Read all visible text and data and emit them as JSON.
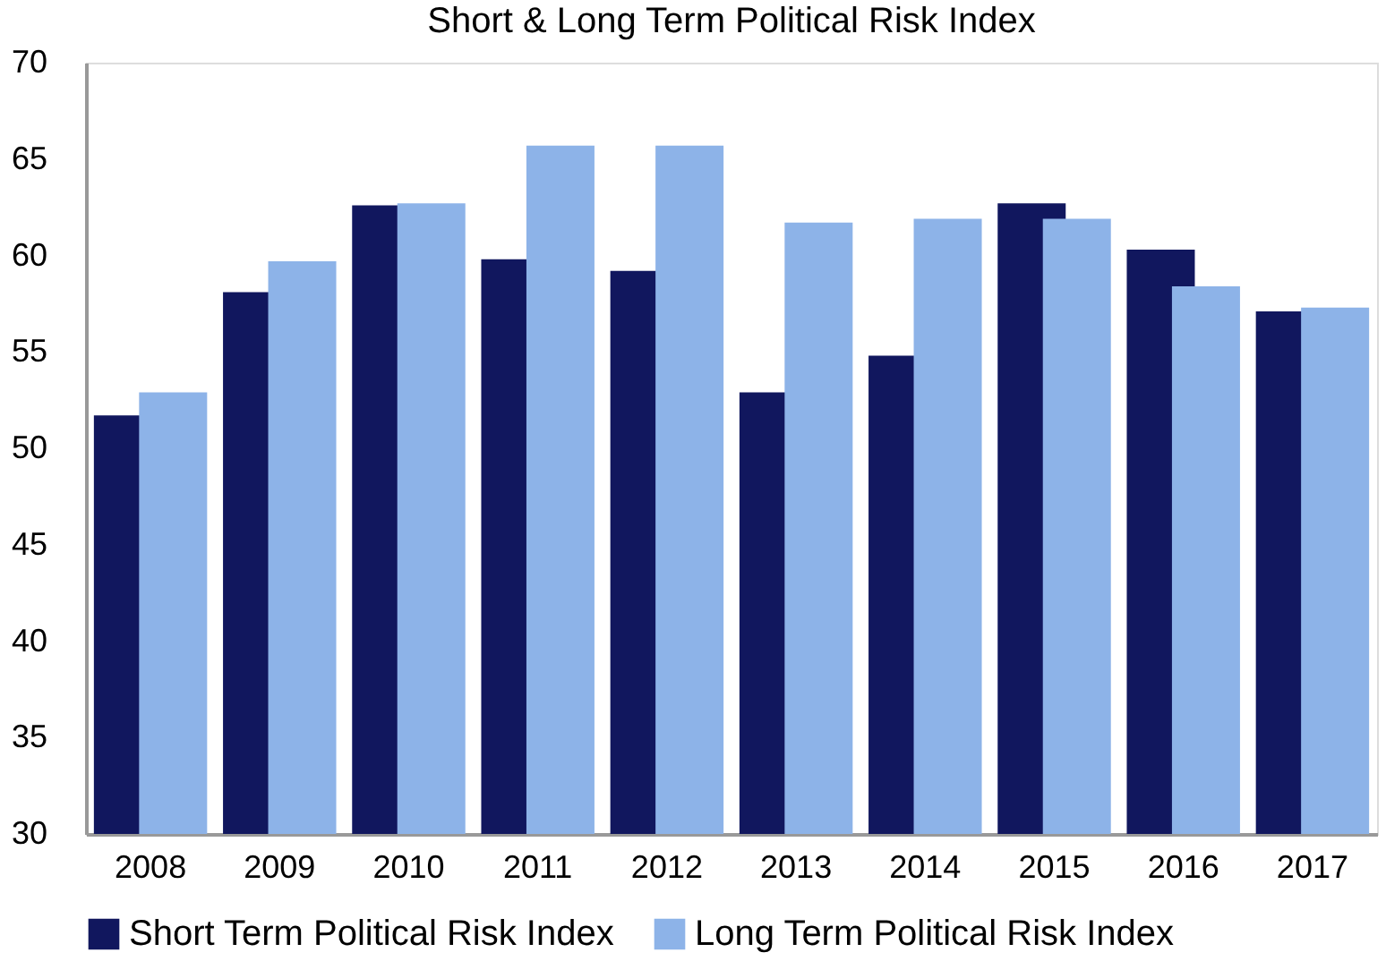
{
  "chart_data": {
    "type": "bar",
    "title": "Short & Long Term Political Risk Index",
    "categories": [
      "2008",
      "2009",
      "2010",
      "2011",
      "2012",
      "2013",
      "2014",
      "2015",
      "2016",
      "2017"
    ],
    "series": [
      {
        "name": "Short Term Political Risk Index",
        "color": "#11175e",
        "values": [
          51.7,
          58.1,
          62.6,
          59.8,
          59.2,
          52.9,
          54.8,
          62.7,
          60.3,
          57.1
        ]
      },
      {
        "name": "Long Term Political Risk Index",
        "color": "#8db3e8",
        "values": [
          52.9,
          59.7,
          62.7,
          65.7,
          65.7,
          61.7,
          61.9,
          61.9,
          58.4,
          57.3
        ]
      }
    ],
    "ylim": [
      30,
      70
    ],
    "yticks": [
      30,
      35,
      40,
      45,
      50,
      55,
      60,
      65,
      70
    ],
    "grid": false,
    "legend": "bottom"
  }
}
